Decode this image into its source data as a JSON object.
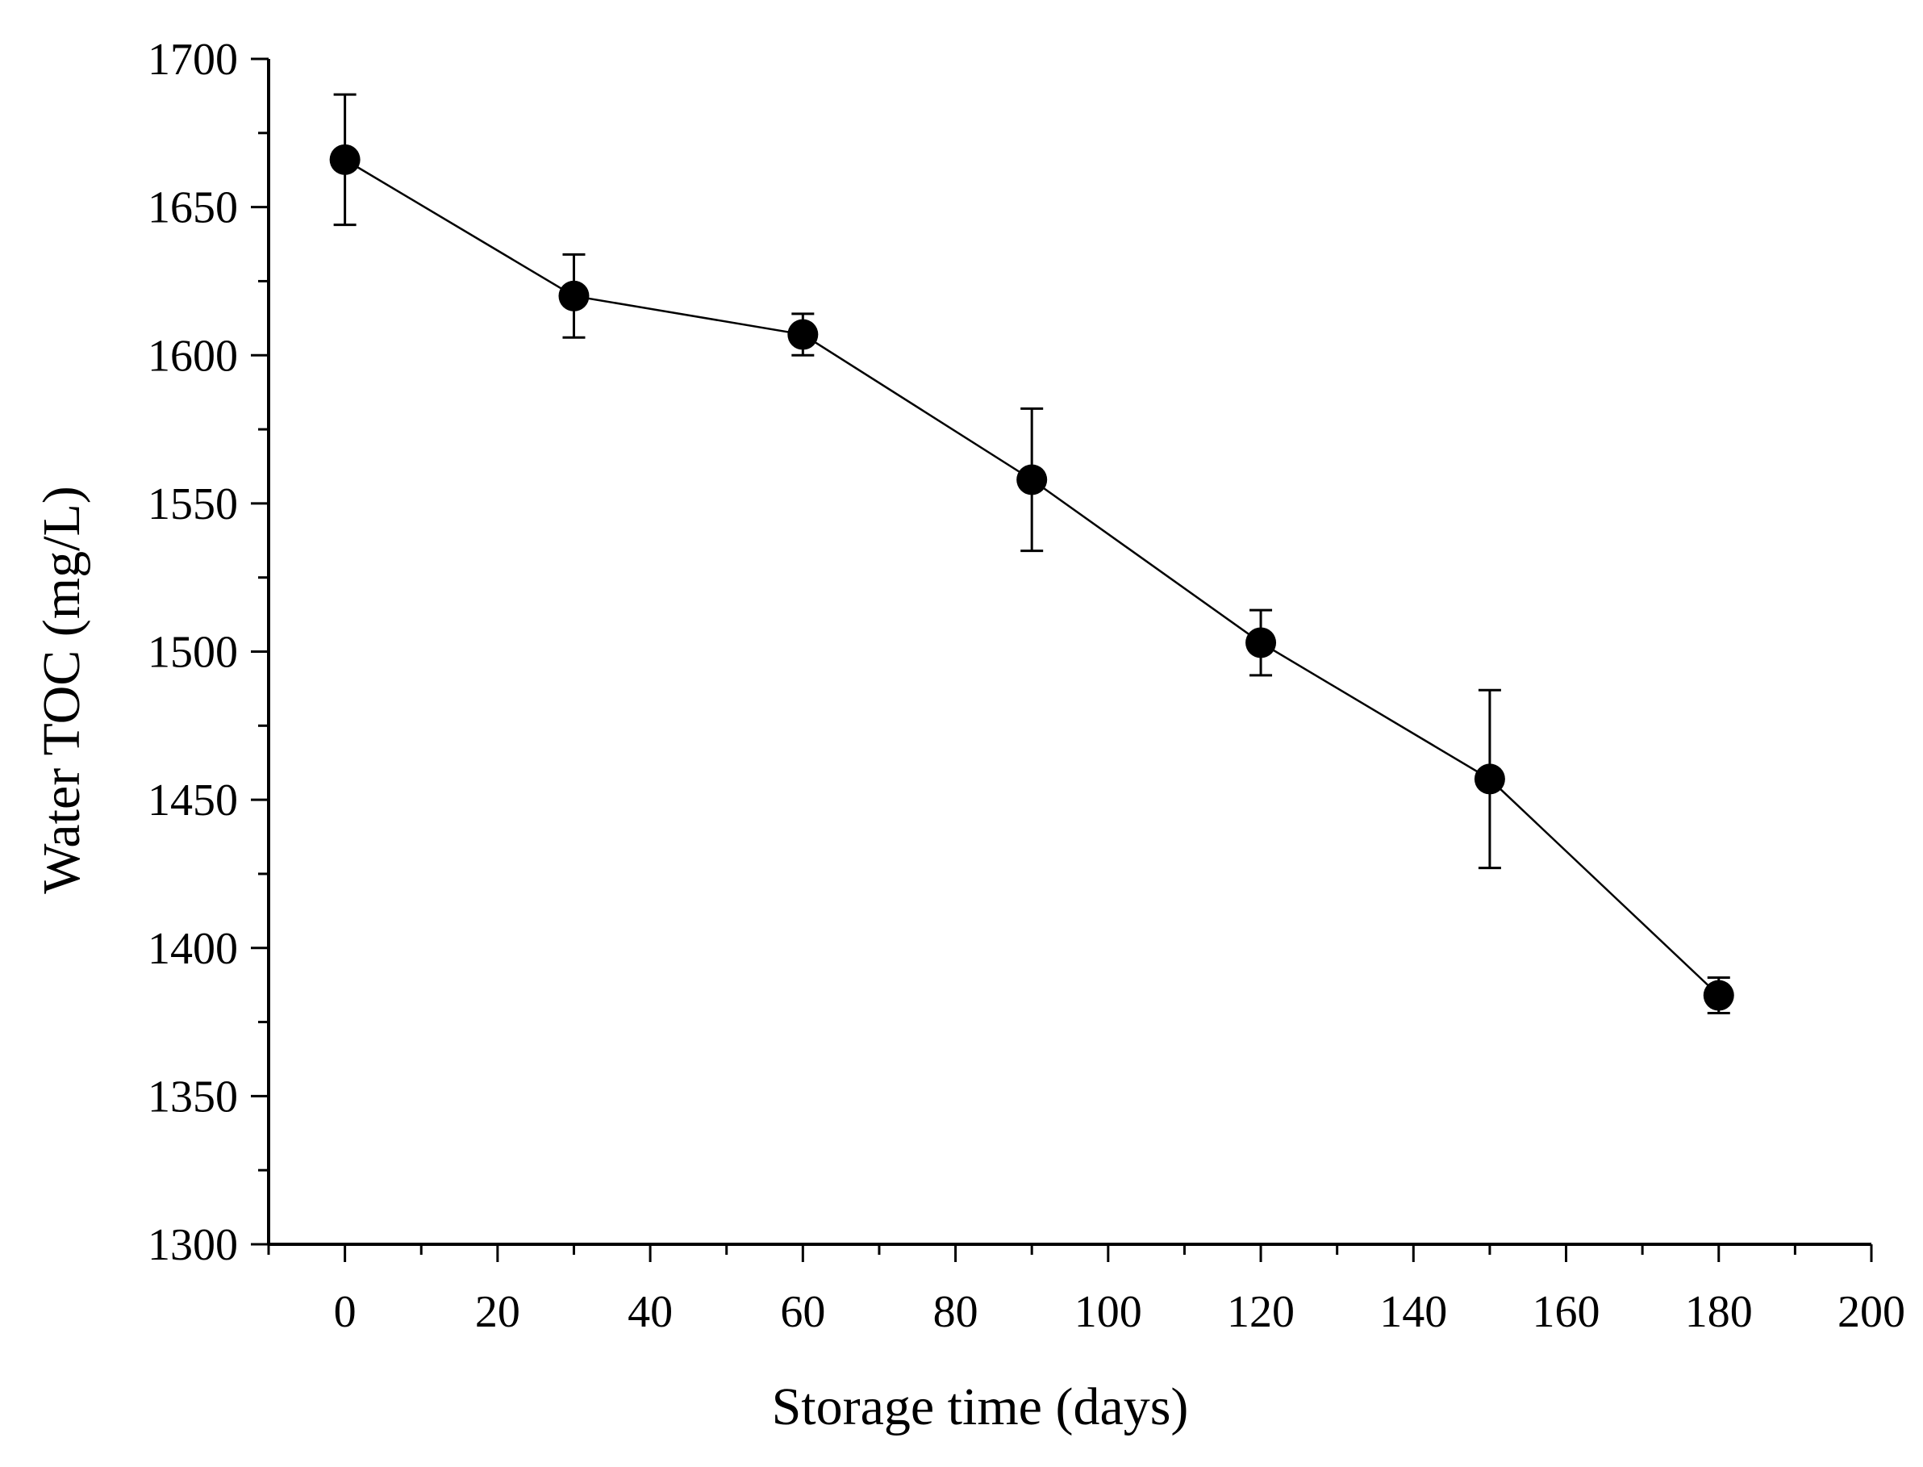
{
  "chart_data": {
    "type": "line",
    "title": "",
    "xlabel": "Storage time (days)",
    "ylabel": "Water TOC (mg/L)",
    "xlim": [
      -10,
      200
    ],
    "ylim": [
      1300,
      1700
    ],
    "x_ticks": [
      0,
      20,
      40,
      60,
      80,
      100,
      120,
      140,
      160,
      180,
      200
    ],
    "x_tick_labels": [
      "0",
      "20",
      "40",
      "60",
      "80",
      "100",
      "120",
      "140",
      "160",
      "180",
      "200"
    ],
    "y_ticks": [
      1300,
      1350,
      1400,
      1450,
      1500,
      1550,
      1600,
      1650,
      1700
    ],
    "y_tick_labels": [
      "1300",
      "1350",
      "1400",
      "1450",
      "1500",
      "1550",
      "1600",
      "1650",
      "1700"
    ],
    "grid": false,
    "series": [
      {
        "name": "Water TOC",
        "x": [
          0,
          30,
          60,
          90,
          120,
          150,
          180
        ],
        "y": [
          1666,
          1620,
          1607,
          1558,
          1503,
          1457,
          1384
        ],
        "error": [
          22,
          14,
          7,
          24,
          11,
          30,
          6
        ],
        "color": "#000000",
        "marker": "filled-circle"
      }
    ]
  }
}
